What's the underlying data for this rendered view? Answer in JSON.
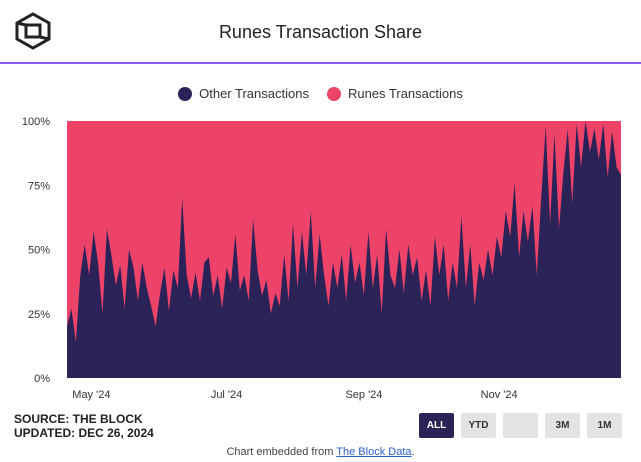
{
  "title": "Runes Transaction Share",
  "logo_icon": "the-block-cube-icon",
  "colors": {
    "other": "#2b2358",
    "runes": "#ee4368",
    "accent": "#8b5cf6"
  },
  "legend": [
    {
      "label": "Other Transactions",
      "color": "#2b2358"
    },
    {
      "label": "Runes Transactions",
      "color": "#ee4368"
    }
  ],
  "footer": {
    "source": "SOURCE: THE BLOCK",
    "updated": "UPDATED: DEC 26, 2024"
  },
  "range_buttons": [
    {
      "label": "ALL",
      "active": true
    },
    {
      "label": "YTD",
      "active": false
    },
    {
      "label": "",
      "active": false
    },
    {
      "label": "3M",
      "active": false
    },
    {
      "label": "1M",
      "active": false
    }
  ],
  "embed": {
    "prefix": "Chart embedded from ",
    "link": "The Block Data",
    "suffix": "."
  },
  "chart_data": {
    "type": "area",
    "stacked": true,
    "title": "Runes Transaction Share",
    "x_tick_labels": [
      "May '24",
      "Jul '24",
      "Sep '24",
      "Nov '24"
    ],
    "x_tick_dates": [
      "2024-05-01",
      "2024-07-01",
      "2024-09-01",
      "2024-11-01"
    ],
    "x_range": [
      "2024-04-20",
      "2024-12-26"
    ],
    "y_tick_labels": [
      "0%",
      "25%",
      "50%",
      "75%",
      "100%"
    ],
    "ylim": [
      0,
      100
    ],
    "grid": true,
    "legend_position": "top",
    "series": [
      {
        "name": "Other Transactions",
        "color": "#2b2358",
        "points": [
          [
            "2024-04-20",
            20
          ],
          [
            "2024-04-22",
            27
          ],
          [
            "2024-04-24",
            14
          ],
          [
            "2024-04-26",
            40
          ],
          [
            "2024-04-28",
            52
          ],
          [
            "2024-04-30",
            40
          ],
          [
            "2024-05-02",
            57
          ],
          [
            "2024-05-04",
            45
          ],
          [
            "2024-05-06",
            25
          ],
          [
            "2024-05-08",
            58
          ],
          [
            "2024-05-10",
            48
          ],
          [
            "2024-05-12",
            36
          ],
          [
            "2024-05-14",
            44
          ],
          [
            "2024-05-16",
            27
          ],
          [
            "2024-05-18",
            50
          ],
          [
            "2024-05-20",
            43
          ],
          [
            "2024-05-22",
            30
          ],
          [
            "2024-05-24",
            45
          ],
          [
            "2024-05-26",
            35
          ],
          [
            "2024-05-28",
            28
          ],
          [
            "2024-05-30",
            20
          ],
          [
            "2024-06-01",
            33
          ],
          [
            "2024-06-03",
            43
          ],
          [
            "2024-06-05",
            26
          ],
          [
            "2024-06-07",
            42
          ],
          [
            "2024-06-09",
            35
          ],
          [
            "2024-06-11",
            70
          ],
          [
            "2024-06-13",
            40
          ],
          [
            "2024-06-15",
            31
          ],
          [
            "2024-06-17",
            41
          ],
          [
            "2024-06-19",
            30
          ],
          [
            "2024-06-21",
            45
          ],
          [
            "2024-06-23",
            47
          ],
          [
            "2024-06-25",
            32
          ],
          [
            "2024-06-27",
            40
          ],
          [
            "2024-06-29",
            27
          ],
          [
            "2024-07-01",
            43
          ],
          [
            "2024-07-03",
            37
          ],
          [
            "2024-07-05",
            56
          ],
          [
            "2024-07-07",
            34
          ],
          [
            "2024-07-09",
            40
          ],
          [
            "2024-07-11",
            30
          ],
          [
            "2024-07-13",
            62
          ],
          [
            "2024-07-15",
            42
          ],
          [
            "2024-07-17",
            32
          ],
          [
            "2024-07-19",
            38
          ],
          [
            "2024-07-21",
            25
          ],
          [
            "2024-07-23",
            33
          ],
          [
            "2024-07-25",
            28
          ],
          [
            "2024-07-27",
            48
          ],
          [
            "2024-07-29",
            30
          ],
          [
            "2024-07-31",
            60
          ],
          [
            "2024-08-02",
            35
          ],
          [
            "2024-08-04",
            57
          ],
          [
            "2024-08-06",
            40
          ],
          [
            "2024-08-08",
            65
          ],
          [
            "2024-08-10",
            35
          ],
          [
            "2024-08-12",
            56
          ],
          [
            "2024-08-14",
            40
          ],
          [
            "2024-08-16",
            28
          ],
          [
            "2024-08-18",
            45
          ],
          [
            "2024-08-20",
            35
          ],
          [
            "2024-08-22",
            48
          ],
          [
            "2024-08-24",
            30
          ],
          [
            "2024-08-26",
            52
          ],
          [
            "2024-08-28",
            37
          ],
          [
            "2024-08-30",
            45
          ],
          [
            "2024-09-01",
            32
          ],
          [
            "2024-09-03",
            57
          ],
          [
            "2024-09-05",
            35
          ],
          [
            "2024-09-07",
            48
          ],
          [
            "2024-09-09",
            25
          ],
          [
            "2024-09-11",
            58
          ],
          [
            "2024-09-13",
            40
          ],
          [
            "2024-09-15",
            35
          ],
          [
            "2024-09-17",
            50
          ],
          [
            "2024-09-19",
            33
          ],
          [
            "2024-09-21",
            52
          ],
          [
            "2024-09-23",
            40
          ],
          [
            "2024-09-25",
            47
          ],
          [
            "2024-09-27",
            30
          ],
          [
            "2024-09-29",
            42
          ],
          [
            "2024-10-01",
            28
          ],
          [
            "2024-10-03",
            55
          ],
          [
            "2024-10-05",
            40
          ],
          [
            "2024-10-07",
            52
          ],
          [
            "2024-10-09",
            30
          ],
          [
            "2024-10-11",
            45
          ],
          [
            "2024-10-13",
            35
          ],
          [
            "2024-10-15",
            63
          ],
          [
            "2024-10-17",
            35
          ],
          [
            "2024-10-19",
            52
          ],
          [
            "2024-10-21",
            28
          ],
          [
            "2024-10-23",
            45
          ],
          [
            "2024-10-25",
            38
          ],
          [
            "2024-10-27",
            50
          ],
          [
            "2024-10-29",
            40
          ],
          [
            "2024-10-31",
            55
          ],
          [
            "2024-11-02",
            47
          ],
          [
            "2024-11-04",
            65
          ],
          [
            "2024-11-06",
            55
          ],
          [
            "2024-11-08",
            76
          ],
          [
            "2024-11-10",
            47
          ],
          [
            "2024-11-12",
            65
          ],
          [
            "2024-11-14",
            53
          ],
          [
            "2024-11-16",
            67
          ],
          [
            "2024-11-18",
            40
          ],
          [
            "2024-11-20",
            70
          ],
          [
            "2024-11-22",
            98
          ],
          [
            "2024-11-24",
            60
          ],
          [
            "2024-11-26",
            95
          ],
          [
            "2024-11-28",
            58
          ],
          [
            "2024-11-30",
            80
          ],
          [
            "2024-12-02",
            97
          ],
          [
            "2024-12-04",
            68
          ],
          [
            "2024-12-06",
            99
          ],
          [
            "2024-12-08",
            82
          ],
          [
            "2024-12-10",
            100
          ],
          [
            "2024-12-12",
            88
          ],
          [
            "2024-12-14",
            97
          ],
          [
            "2024-12-16",
            85
          ],
          [
            "2024-12-18",
            99
          ],
          [
            "2024-12-20",
            78
          ],
          [
            "2024-12-22",
            96
          ],
          [
            "2024-12-24",
            82
          ],
          [
            "2024-12-26",
            79
          ]
        ]
      },
      {
        "name": "Runes Transactions",
        "color": "#ee4368",
        "note_fill": "stacked remainder to 100%"
      }
    ]
  }
}
